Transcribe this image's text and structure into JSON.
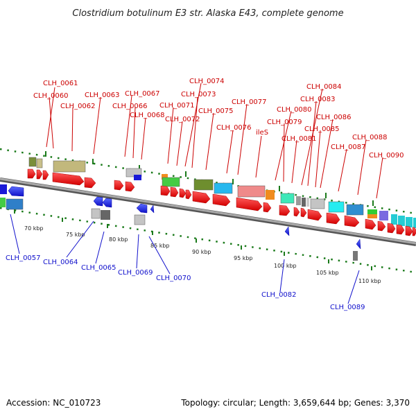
{
  "title": "Clostridium botulinum E3 str. Alaska E43, complete genome",
  "footer": {
    "accession": "Accession: NC_010723",
    "summary": "Topology: circular; Length: 3,659,644 bp; Genes: 3,370"
  },
  "scale_labels": [
    "70 kbp",
    "75 kbp",
    "80 kbp",
    "85 kbp",
    "90 kbp",
    "95 kbp",
    "100 kbp",
    "105 kbp",
    "110 kbp"
  ],
  "top_gene_labels": [
    "CLH_0061",
    "CLH_0060",
    "CLH_0062",
    "CLH_0063",
    "CLH_0067",
    "CLH_0066",
    "CLH_0068",
    "CLH_0071",
    "CLH_0072",
    "CLH_0074",
    "CLH_0073",
    "CLH_0075",
    "CLH_0076",
    "CLH_0077",
    "ileS",
    "CLH_0080",
    "CLH_0079",
    "CLH_0081",
    "CLH_0084",
    "CLH_0083",
    "CLH_0085",
    "CLH_0086",
    "CLH_0087",
    "CLH_0088",
    "CLH_0090"
  ],
  "bottom_gene_labels": [
    "CLH_0057",
    "CLH_0064",
    "CLH_0065",
    "CLH_0069",
    "CLH_0070",
    "CLH_0082",
    "CLH_0089"
  ],
  "colors": {
    "forward_strand": "#ee0000",
    "reverse_strand": "#1515dd",
    "backbone": "#888888",
    "ticks": "#1a7a1a"
  }
}
